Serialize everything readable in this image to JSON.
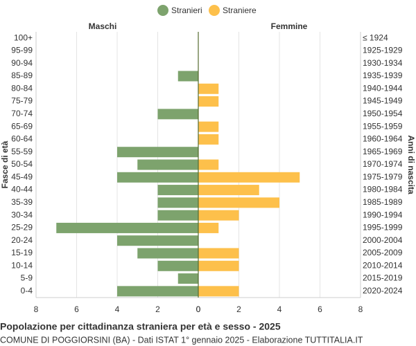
{
  "chart_data": {
    "type": "pyramid",
    "title": "Popolazione per cittadinanza straniera per età e sesso - 2025",
    "subtitle": "COMUNE DI POGGIORSINI (BA) - Dati ISTAT 1° gennaio 2025 - Elaborazione TUTTITALIA.IT",
    "left_label": "Maschi",
    "right_label": "Femmine",
    "y_label": "Fasce di età",
    "y2_label": "Anni di nascita",
    "categories": [
      "100+",
      "95-99",
      "90-94",
      "85-89",
      "80-84",
      "75-79",
      "70-74",
      "65-69",
      "60-64",
      "55-59",
      "50-54",
      "45-49",
      "40-44",
      "35-39",
      "30-34",
      "25-29",
      "20-24",
      "15-19",
      "10-14",
      "5-9",
      "0-4"
    ],
    "birth_years": [
      "≤ 1924",
      "1925-1929",
      "1930-1934",
      "1935-1939",
      "1940-1944",
      "1945-1949",
      "1950-1954",
      "1955-1959",
      "1960-1964",
      "1965-1969",
      "1970-1974",
      "1975-1979",
      "1980-1984",
      "1985-1989",
      "1990-1994",
      "1995-1999",
      "2000-2004",
      "2005-2009",
      "2010-2014",
      "2015-2019",
      "2020-2024"
    ],
    "series": [
      {
        "name": "Stranieri",
        "color": "#7da36d",
        "side": "left",
        "values": [
          0,
          0,
          0,
          1,
          0,
          0,
          2,
          0,
          0,
          4,
          3,
          4,
          2,
          2,
          2,
          7,
          4,
          3,
          2,
          1,
          4
        ]
      },
      {
        "name": "Straniere",
        "color": "#fdc04b",
        "side": "right",
        "values": [
          0,
          0,
          0,
          0,
          1,
          1,
          0,
          1,
          1,
          0,
          1,
          5,
          3,
          4,
          2,
          1,
          0,
          2,
          2,
          0,
          2
        ]
      }
    ],
    "xlim": [
      0,
      8
    ],
    "xticks": [
      0,
      2,
      4,
      6,
      8
    ],
    "grid": true
  }
}
